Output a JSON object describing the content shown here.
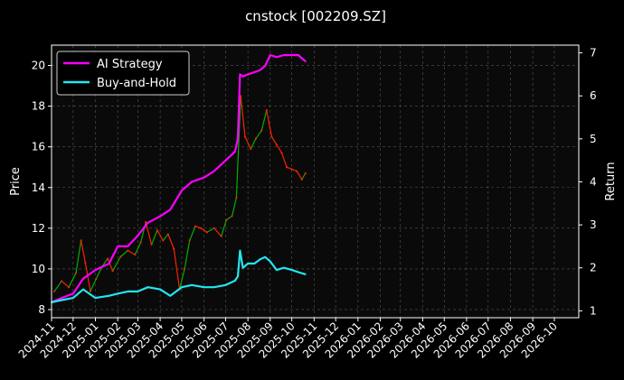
{
  "chart_data": {
    "type": "line",
    "title": "cnstock [002209.SZ]",
    "xlabel": "",
    "ylabel": "Price",
    "y2label": "Return",
    "background": "#000000",
    "grid": true,
    "legend_position": "top-left",
    "x_ticks": [
      "2024-11",
      "2024-12",
      "2025-01",
      "2025-02",
      "2025-03",
      "2025-04",
      "2025-05",
      "2025-06",
      "2025-07",
      "2025-08",
      "2025-09",
      "2025-10",
      "2025-11",
      "2025-12",
      "2026-01",
      "2026-02",
      "2026-03",
      "2026-04",
      "2026-05",
      "2026-06",
      "2026-07",
      "2026-08",
      "2026-09",
      "2026-10"
    ],
    "x_range": [
      "2024-11-01",
      "2026-11-04"
    ],
    "y_left": {
      "range": [
        7.6,
        21.0
      ],
      "ticks": [
        8,
        10,
        12,
        14,
        16,
        18,
        20
      ]
    },
    "y_right": {
      "range": [
        0.84,
        7.18
      ],
      "ticks": [
        1,
        2,
        3,
        4,
        5,
        6,
        7
      ]
    },
    "price_series": {
      "name": "Price",
      "axis": "left",
      "up_color": "#00b000",
      "down_color": "#ff2000",
      "points": [
        {
          "date": "2024-11-05",
          "value": 8.9
        },
        {
          "date": "2024-11-15",
          "value": 9.4
        },
        {
          "date": "2024-11-25",
          "value": 9.1
        },
        {
          "date": "2024-12-05",
          "value": 9.8
        },
        {
          "date": "2024-12-12",
          "value": 11.4
        },
        {
          "date": "2024-12-18",
          "value": 10.3
        },
        {
          "date": "2024-12-25",
          "value": 8.9
        },
        {
          "date": "2025-01-02",
          "value": 9.5
        },
        {
          "date": "2025-01-10",
          "value": 10.1
        },
        {
          "date": "2025-01-18",
          "value": 10.5
        },
        {
          "date": "2025-01-25",
          "value": 9.9
        },
        {
          "date": "2025-02-05",
          "value": 10.6
        },
        {
          "date": "2025-02-15",
          "value": 10.9
        },
        {
          "date": "2025-02-25",
          "value": 10.7
        },
        {
          "date": "2025-03-05",
          "value": 11.3
        },
        {
          "date": "2025-03-12",
          "value": 12.3
        },
        {
          "date": "2025-03-20",
          "value": 11.2
        },
        {
          "date": "2025-03-28",
          "value": 11.9
        },
        {
          "date": "2025-04-05",
          "value": 11.4
        },
        {
          "date": "2025-04-12",
          "value": 11.7
        },
        {
          "date": "2025-04-20",
          "value": 11.0
        },
        {
          "date": "2025-04-28",
          "value": 9.0
        },
        {
          "date": "2025-05-05",
          "value": 10.0
        },
        {
          "date": "2025-05-12",
          "value": 11.4
        },
        {
          "date": "2025-05-20",
          "value": 12.1
        },
        {
          "date": "2025-05-28",
          "value": 12.0
        },
        {
          "date": "2025-06-05",
          "value": 11.8
        },
        {
          "date": "2025-06-15",
          "value": 12.0
        },
        {
          "date": "2025-06-25",
          "value": 11.6
        },
        {
          "date": "2025-07-02",
          "value": 12.4
        },
        {
          "date": "2025-07-10",
          "value": 12.6
        },
        {
          "date": "2025-07-16",
          "value": 13.5
        },
        {
          "date": "2025-07-22",
          "value": 18.5
        },
        {
          "date": "2025-07-28",
          "value": 16.5
        },
        {
          "date": "2025-08-05",
          "value": 15.9
        },
        {
          "date": "2025-08-12",
          "value": 16.4
        },
        {
          "date": "2025-08-20",
          "value": 16.8
        },
        {
          "date": "2025-08-27",
          "value": 17.8
        },
        {
          "date": "2025-09-03",
          "value": 16.5
        },
        {
          "date": "2025-09-10",
          "value": 16.1
        },
        {
          "date": "2025-09-17",
          "value": 15.7
        },
        {
          "date": "2025-09-24",
          "value": 15.0
        },
        {
          "date": "2025-10-01",
          "value": 14.9
        },
        {
          "date": "2025-10-08",
          "value": 14.8
        },
        {
          "date": "2025-10-15",
          "value": 14.4
        },
        {
          "date": "2025-10-20",
          "value": 14.7
        }
      ]
    },
    "series": [
      {
        "name": "AI Strategy",
        "axis": "right",
        "color": "#ff00ff",
        "points": [
          {
            "date": "2024-11-01",
            "value": 1.2
          },
          {
            "date": "2024-11-15",
            "value": 1.3
          },
          {
            "date": "2024-12-01",
            "value": 1.4
          },
          {
            "date": "2024-12-15",
            "value": 1.75
          },
          {
            "date": "2025-01-01",
            "value": 1.95
          },
          {
            "date": "2025-01-20",
            "value": 2.1
          },
          {
            "date": "2025-02-01",
            "value": 2.5
          },
          {
            "date": "2025-02-15",
            "value": 2.5
          },
          {
            "date": "2025-03-01",
            "value": 2.75
          },
          {
            "date": "2025-03-15",
            "value": 3.05
          },
          {
            "date": "2025-04-01",
            "value": 3.2
          },
          {
            "date": "2025-04-15",
            "value": 3.35
          },
          {
            "date": "2025-05-01",
            "value": 3.8
          },
          {
            "date": "2025-05-15",
            "value": 4.0
          },
          {
            "date": "2025-06-01",
            "value": 4.1
          },
          {
            "date": "2025-06-15",
            "value": 4.25
          },
          {
            "date": "2025-07-01",
            "value": 4.5
          },
          {
            "date": "2025-07-14",
            "value": 4.7
          },
          {
            "date": "2025-07-18",
            "value": 5.0
          },
          {
            "date": "2025-07-21",
            "value": 6.5
          },
          {
            "date": "2025-07-25",
            "value": 6.45
          },
          {
            "date": "2025-08-01",
            "value": 6.5
          },
          {
            "date": "2025-08-10",
            "value": 6.55
          },
          {
            "date": "2025-08-18",
            "value": 6.6
          },
          {
            "date": "2025-08-25",
            "value": 6.7
          },
          {
            "date": "2025-09-01",
            "value": 6.95
          },
          {
            "date": "2025-09-10",
            "value": 6.9
          },
          {
            "date": "2025-09-20",
            "value": 6.95
          },
          {
            "date": "2025-10-01",
            "value": 6.95
          },
          {
            "date": "2025-10-10",
            "value": 6.95
          },
          {
            "date": "2025-10-20",
            "value": 6.8
          }
        ]
      },
      {
        "name": "Buy-and-Hold",
        "axis": "right",
        "color": "#22e6f0",
        "points": [
          {
            "date": "2024-11-01",
            "value": 1.2
          },
          {
            "date": "2024-11-15",
            "value": 1.25
          },
          {
            "date": "2024-12-01",
            "value": 1.3
          },
          {
            "date": "2024-12-15",
            "value": 1.5
          },
          {
            "date": "2025-01-01",
            "value": 1.3
          },
          {
            "date": "2025-01-20",
            "value": 1.35
          },
          {
            "date": "2025-02-01",
            "value": 1.4
          },
          {
            "date": "2025-02-15",
            "value": 1.45
          },
          {
            "date": "2025-03-01",
            "value": 1.45
          },
          {
            "date": "2025-03-15",
            "value": 1.55
          },
          {
            "date": "2025-04-01",
            "value": 1.5
          },
          {
            "date": "2025-04-15",
            "value": 1.35
          },
          {
            "date": "2025-05-01",
            "value": 1.55
          },
          {
            "date": "2025-05-15",
            "value": 1.6
          },
          {
            "date": "2025-06-01",
            "value": 1.55
          },
          {
            "date": "2025-06-15",
            "value": 1.55
          },
          {
            "date": "2025-07-01",
            "value": 1.6
          },
          {
            "date": "2025-07-14",
            "value": 1.7
          },
          {
            "date": "2025-07-18",
            "value": 1.8
          },
          {
            "date": "2025-07-21",
            "value": 2.4
          },
          {
            "date": "2025-07-25",
            "value": 2.0
          },
          {
            "date": "2025-08-01",
            "value": 2.1
          },
          {
            "date": "2025-08-10",
            "value": 2.1
          },
          {
            "date": "2025-08-18",
            "value": 2.2
          },
          {
            "date": "2025-08-25",
            "value": 2.25
          },
          {
            "date": "2025-09-01",
            "value": 2.15
          },
          {
            "date": "2025-09-10",
            "value": 1.95
          },
          {
            "date": "2025-09-20",
            "value": 2.0
          },
          {
            "date": "2025-10-01",
            "value": 1.95
          },
          {
            "date": "2025-10-10",
            "value": 1.9
          },
          {
            "date": "2025-10-20",
            "value": 1.85
          }
        ]
      }
    ]
  }
}
